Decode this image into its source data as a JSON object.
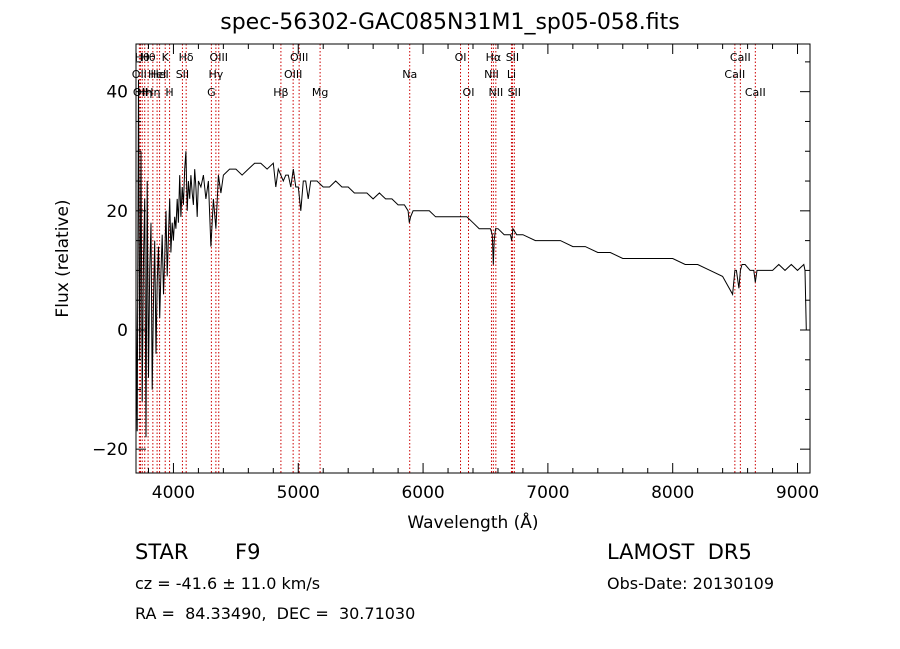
{
  "chart_data": {
    "type": "line",
    "title": "spec-56302-GAC085N31M1_sp05-058.fits",
    "xlabel": "Wavelength (Å)",
    "ylabel": "Flux (relative)",
    "xlim": [
      3700,
      9100
    ],
    "ylim": [
      -24,
      48
    ],
    "x_ticks": [
      4000,
      5000,
      6000,
      7000,
      8000,
      9000
    ],
    "y_ticks": [
      -20,
      0,
      20,
      40
    ],
    "grid": false,
    "legend": "none",
    "line_color": "#000000",
    "marker_color": "#cc0000",
    "series": [
      {
        "x": [
          3700,
          3710,
          3720,
          3730,
          3740,
          3750,
          3760,
          3770,
          3780,
          3790,
          3800,
          3810,
          3820,
          3830,
          3840,
          3850,
          3860,
          3870,
          3880,
          3890,
          3900,
          3910,
          3920,
          3930,
          3940,
          3950,
          3960,
          3970,
          3980,
          3990,
          4000,
          4010,
          4020,
          4030,
          4040,
          4050,
          4060,
          4070,
          4080,
          4090,
          4100,
          4110,
          4120,
          4130,
          4140,
          4150,
          4160,
          4170,
          4180,
          4190,
          4200,
          4220,
          4240,
          4260,
          4280,
          4300,
          4320,
          4340,
          4360,
          4380,
          4400,
          4450,
          4500,
          4550,
          4600,
          4650,
          4700,
          4750,
          4800,
          4820,
          4840,
          4860,
          4880,
          4900,
          4920,
          4940,
          4960,
          4980,
          5000,
          5020,
          5040,
          5060,
          5080,
          5100,
          5150,
          5200,
          5250,
          5300,
          5350,
          5400,
          5450,
          5500,
          5550,
          5600,
          5650,
          5700,
          5750,
          5800,
          5850,
          5880,
          5890,
          5900,
          5920,
          5950,
          6000,
          6050,
          6100,
          6150,
          6200,
          6250,
          6300,
          6350,
          6400,
          6450,
          6500,
          6540,
          6555,
          6563,
          6570,
          6580,
          6600,
          6650,
          6700,
          6710,
          6720,
          6750,
          6800,
          6900,
          7000,
          7100,
          7200,
          7300,
          7400,
          7500,
          7600,
          7700,
          7800,
          7900,
          8000,
          8100,
          8200,
          8300,
          8400,
          8480,
          8498,
          8510,
          8530,
          8542,
          8555,
          8580,
          8620,
          8650,
          8662,
          8675,
          8700,
          8750,
          8800,
          8850,
          8900,
          8950,
          9000,
          9050,
          9060,
          9070
        ],
        "y": [
          5,
          -17,
          42,
          -5,
          30,
          -12,
          12,
          22,
          -18,
          25,
          -8,
          10,
          18,
          -10,
          5,
          15,
          -4,
          8,
          14,
          2,
          10,
          16,
          6,
          12,
          20,
          9,
          16,
          22,
          13,
          18,
          15,
          19,
          17,
          22,
          18,
          26,
          19,
          24,
          21,
          27,
          30,
          20,
          25,
          22,
          26,
          23,
          21,
          27,
          24,
          19,
          25,
          24,
          26,
          22,
          25,
          14,
          22,
          17,
          26,
          23,
          26,
          27,
          27,
          26,
          27,
          28,
          28,
          27,
          28,
          24,
          27,
          26,
          25,
          26,
          26,
          24,
          27,
          24,
          24,
          20,
          25,
          25,
          22,
          25,
          25,
          24,
          24,
          25,
          24,
          24,
          23,
          23,
          23,
          22,
          23,
          22,
          22,
          21,
          21,
          20,
          18,
          19,
          20,
          20,
          20,
          20,
          19,
          19,
          19,
          19,
          19,
          19,
          18,
          17,
          17,
          17,
          16,
          11,
          15,
          17,
          17,
          16,
          16,
          15,
          17,
          16,
          16,
          15,
          15,
          15,
          14,
          14,
          13,
          13,
          12,
          12,
          12,
          12,
          12,
          11,
          11,
          10,
          9,
          6,
          10,
          10,
          7,
          10,
          11,
          11,
          10,
          10,
          8,
          10,
          10,
          10,
          10,
          11,
          10,
          11,
          10,
          11,
          10,
          0
        ]
      }
    ],
    "line_markers": [
      {
        "wl": 3727,
        "label": "OII",
        "row": 2
      },
      {
        "wl": 3736,
        "label": "OII",
        "row": 3
      },
      {
        "wl": 3750,
        "label": "Hθ",
        "row": 1
      },
      {
        "wl": 3770,
        "label": "Hη",
        "row": 3
      },
      {
        "wl": 3797,
        "label": "Hθ",
        "row": 1
      },
      {
        "wl": 3835,
        "label": "Hη",
        "row": 3
      },
      {
        "wl": 3869,
        "label": "HeI",
        "row": 2
      },
      {
        "wl": 3889,
        "label": "HeI",
        "row": 2
      },
      {
        "wl": 3934,
        "label": "K",
        "row": 1
      },
      {
        "wl": 3969,
        "label": "H",
        "row": 3
      },
      {
        "wl": 4072,
        "label": "SII",
        "row": 2
      },
      {
        "wl": 4102,
        "label": "Hδ",
        "row": 1
      },
      {
        "wl": 4304,
        "label": "G",
        "row": 3
      },
      {
        "wl": 4340,
        "label": "Hγ",
        "row": 2
      },
      {
        "wl": 4363,
        "label": "OIII",
        "row": 1
      },
      {
        "wl": 4861,
        "label": "Hβ",
        "row": 3
      },
      {
        "wl": 4959,
        "label": "OIII",
        "row": 2
      },
      {
        "wl": 5007,
        "label": "OIII",
        "row": 1
      },
      {
        "wl": 5175,
        "label": "Mg",
        "row": 3
      },
      {
        "wl": 5893,
        "label": "Na",
        "row": 2
      },
      {
        "wl": 6300,
        "label": "OI",
        "row": 1
      },
      {
        "wl": 6364,
        "label": "OI",
        "row": 3
      },
      {
        "wl": 6548,
        "label": "NII",
        "row": 2
      },
      {
        "wl": 6563,
        "label": "Hα",
        "row": 1
      },
      {
        "wl": 6583,
        "label": "NII",
        "row": 3
      },
      {
        "wl": 6708,
        "label": "Li",
        "row": 2
      },
      {
        "wl": 6716,
        "label": "SII",
        "row": 1
      },
      {
        "wl": 6731,
        "label": "SII",
        "row": 3
      },
      {
        "wl": 8498,
        "label": "CaII",
        "row": 2
      },
      {
        "wl": 8542,
        "label": "CaII",
        "row": 1
      },
      {
        "wl": 8662,
        "label": "CaII",
        "row": 3
      }
    ]
  },
  "footer": {
    "class_label": "STAR",
    "subclass": "F9",
    "survey": "LAMOST  DR5",
    "cz_line": "cz = -41.6 ± 11.0 km/s",
    "obs_date": "Obs-Date: 20130109",
    "coords": "RA =  84.33490,  DEC =  30.71030"
  }
}
